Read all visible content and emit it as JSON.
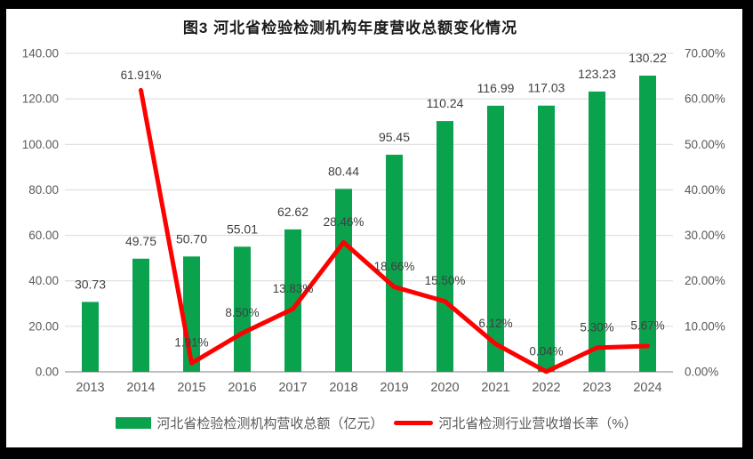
{
  "title": "图3 河北省检验检测机构年度营收总额变化情况",
  "colors": {
    "bar": "#0aa24d",
    "line": "#ff0000",
    "grid": "#d9d9d9",
    "axis_line": "#bfbfbf",
    "tick_text": "#595959",
    "data_label_text": "#404040"
  },
  "legend": [
    {
      "label": "河北省检验检测机构营收总额（亿元）",
      "swatch": "bar",
      "color": "#0aa24d"
    },
    {
      "label": "河北省检测行业营收增长率（%）",
      "swatch": "line",
      "color": "#ff0000"
    }
  ],
  "chart_data": {
    "type": "combo",
    "title": "图3 河北省检验检测机构年度营收总额变化情况",
    "categories": [
      "2013",
      "2014",
      "2015",
      "2016",
      "2017",
      "2018",
      "2019",
      "2020",
      "2021",
      "2022",
      "2023",
      "2024"
    ],
    "series": [
      {
        "name": "河北省检验检测机构营收总额（亿元）",
        "type": "bar",
        "axis": "left",
        "color": "#0aa24d",
        "values": [
          30.73,
          49.75,
          50.7,
          55.01,
          62.62,
          80.44,
          95.45,
          110.24,
          116.99,
          117.03,
          123.23,
          130.22
        ],
        "labels": [
          "30.73",
          "49.75",
          "50.70",
          "55.01",
          "62.62",
          "80.44",
          "95.45",
          "110.24",
          "116.99",
          "117.03",
          "123.23",
          "130.22"
        ]
      },
      {
        "name": "河北省检测行业营收增长率（%）",
        "type": "line",
        "axis": "right",
        "color": "#ff0000",
        "values": [
          null,
          61.91,
          1.91,
          8.5,
          13.83,
          28.46,
          18.66,
          15.5,
          6.12,
          0.04,
          5.3,
          5.67
        ],
        "labels": [
          null,
          "61.91%",
          "1.91%",
          "8.50%",
          "13.83%",
          "28.46%",
          "18.66%",
          "15.50%",
          "6.12%",
          "0.04%",
          "5.30%",
          "5.67%"
        ]
      }
    ],
    "left_axis": {
      "min": 0,
      "max": 140,
      "step": 20,
      "tick_labels": [
        "0.00",
        "20.00",
        "40.00",
        "60.00",
        "80.00",
        "100.00",
        "120.00",
        "140.00"
      ]
    },
    "right_axis": {
      "min": 0,
      "max": 70,
      "step": 10,
      "tick_labels": [
        "0.00%",
        "10.00%",
        "20.00%",
        "30.00%",
        "40.00%",
        "50.00%",
        "60.00%",
        "70.00%"
      ]
    },
    "grid": true,
    "legend_position": "bottom"
  }
}
